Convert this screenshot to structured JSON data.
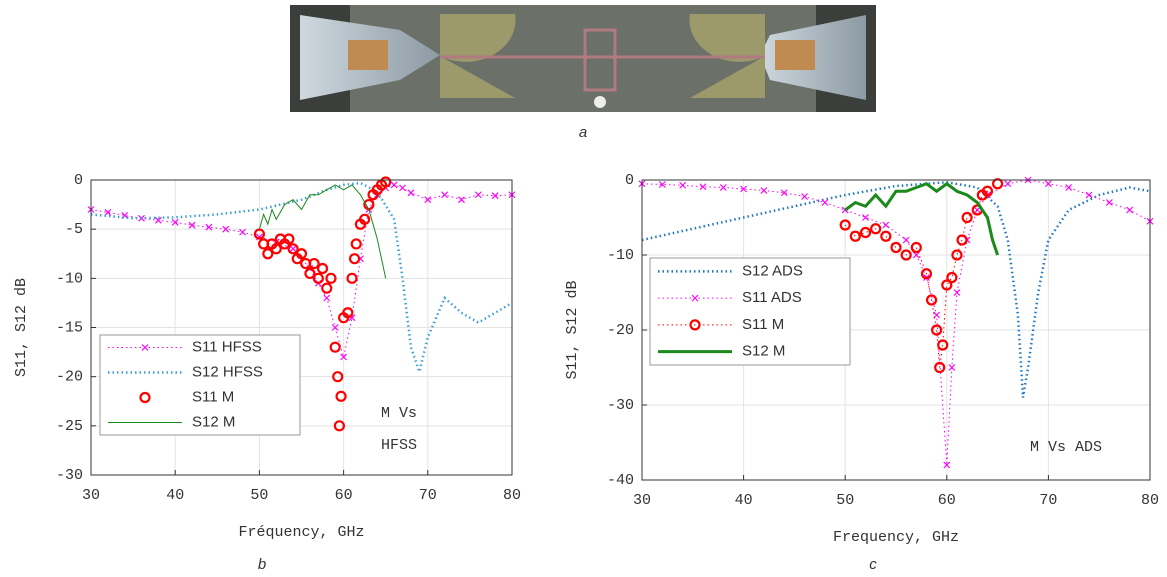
{
  "photo_caption": "a",
  "chart_data": [
    {
      "type": "line",
      "caption": "b",
      "xlabel": "Fréquency, GHz",
      "ylabel": "S11, S12 dB",
      "annotations": [
        "M Vs",
        "HFSS"
      ],
      "xlim": [
        30,
        80
      ],
      "ylim": [
        -30,
        0
      ],
      "xticks": [
        30,
        40,
        50,
        60,
        70,
        80
      ],
      "yticks": [
        -30,
        -25,
        -20,
        -15,
        -10,
        -5,
        0
      ],
      "grid": true,
      "series": [
        {
          "name": "S11 HFSS",
          "color": "#ff00ff",
          "line": "dotted",
          "marker": "x",
          "x": [
            30,
            32,
            34,
            36,
            38,
            40,
            42,
            44,
            46,
            48,
            50,
            52,
            54,
            56,
            57,
            58,
            59,
            60,
            61,
            62,
            63,
            64,
            65,
            66,
            67,
            68,
            70,
            72,
            74,
            76,
            78,
            80
          ],
          "values": [
            -3,
            -3.3,
            -3.6,
            -3.9,
            -4.1,
            -4.3,
            -4.6,
            -4.8,
            -5,
            -5.3,
            -5.8,
            -6.3,
            -7,
            -9,
            -10.5,
            -12,
            -15,
            -18,
            -14,
            -8,
            -3,
            -1.5,
            -0.8,
            -0.5,
            -0.8,
            -1.3,
            -2,
            -1.5,
            -2,
            -1.5,
            -1.6,
            -1.5
          ]
        },
        {
          "name": "S12 HFSS",
          "color": "#3d9fd6",
          "line": "dotted",
          "marker": null,
          "x": [
            30,
            35,
            40,
            45,
            50,
            55,
            58,
            60,
            62,
            64,
            66,
            67,
            68,
            69,
            70,
            72,
            74,
            76,
            78,
            80
          ],
          "values": [
            -3.5,
            -3.9,
            -3.8,
            -3.5,
            -3,
            -2,
            -1,
            -0.5,
            -0.3,
            -1.2,
            -4,
            -10,
            -17,
            -19.5,
            -16,
            -12,
            -13.5,
            -14.5,
            -13.5,
            -12.5
          ]
        },
        {
          "name": "S11 M",
          "color": "#ff0000",
          "line": null,
          "marker": "circle",
          "x": [
            50,
            50.5,
            51,
            51.5,
            52,
            52.5,
            53,
            53.5,
            54,
            54.5,
            55,
            55.5,
            56,
            56.5,
            57,
            57.5,
            58,
            58.5,
            59,
            59.3,
            59.5,
            59.7,
            60,
            60.5,
            61,
            61.3,
            61.5,
            62,
            62.5,
            63,
            63.5,
            64,
            64.5,
            65
          ],
          "values": [
            -5.5,
            -6.5,
            -7.5,
            -6.5,
            -7,
            -6,
            -6.5,
            -6,
            -7,
            -8,
            -7.5,
            -8.5,
            -9.5,
            -8.5,
            -10,
            -9,
            -11,
            -10,
            -17,
            -20,
            -25,
            -22,
            -14,
            -13.5,
            -10,
            -8,
            -6.5,
            -4.5,
            -4,
            -2.5,
            -1.5,
            -1,
            -0.5,
            -0.2
          ]
        },
        {
          "name": "S12 M",
          "color": "#1a8a1a",
          "line": "solid",
          "marker": null,
          "x": [
            50,
            50.5,
            51,
            51.5,
            52,
            53,
            54,
            55,
            56,
            57,
            58,
            59,
            60,
            61,
            62,
            63,
            64,
            65
          ],
          "values": [
            -5,
            -3.5,
            -4.5,
            -3,
            -4,
            -2.5,
            -2,
            -3,
            -1.5,
            -1.5,
            -1,
            -0.5,
            -1,
            -0.5,
            -1.5,
            -3,
            -6,
            -10
          ]
        }
      ]
    },
    {
      "type": "line",
      "caption": "c",
      "xlabel": "Frequency, GHz",
      "ylabel": "S11, S12 dB",
      "annotations": [
        "M Vs ADS"
      ],
      "xlim": [
        30,
        80
      ],
      "ylim": [
        -40,
        0
      ],
      "xticks": [
        30,
        40,
        50,
        60,
        70,
        80
      ],
      "yticks": [
        -40,
        -30,
        -20,
        -10,
        0
      ],
      "grid": true,
      "series": [
        {
          "name": "S12 ADS",
          "color": "#1f77c4",
          "line": "dotted",
          "marker": null,
          "x": [
            30,
            35,
            40,
            45,
            50,
            55,
            60,
            63,
            65,
            66,
            67,
            67.5,
            68,
            69,
            70,
            72,
            75,
            78,
            80
          ],
          "values": [
            -8,
            -6.5,
            -5,
            -3.5,
            -2,
            -0.8,
            -0.3,
            -1,
            -3.5,
            -8,
            -18,
            -29,
            -25,
            -15,
            -8,
            -4,
            -2,
            -1,
            -1.5
          ]
        },
        {
          "name": "S11 ADS",
          "color": "#ff00ff",
          "line": "dotted",
          "marker": "x",
          "x": [
            30,
            32,
            34,
            36,
            38,
            40,
            42,
            44,
            46,
            48,
            50,
            52,
            54,
            56,
            57,
            58,
            59,
            60,
            60.5,
            61,
            62,
            63,
            64,
            66,
            68,
            70,
            72,
            74,
            76,
            78,
            80
          ],
          "values": [
            -0.5,
            -0.6,
            -0.7,
            -0.9,
            -1,
            -1.2,
            -1.4,
            -1.7,
            -2.2,
            -3,
            -4,
            -5,
            -6,
            -8,
            -10,
            -13,
            -18,
            -38,
            -25,
            -15,
            -8,
            -4,
            -2,
            -0.5,
            0,
            -0.5,
            -1,
            -2,
            -3,
            -4,
            -5.5
          ]
        },
        {
          "name": "S11 M",
          "color": "#ff0000",
          "line": "dotted",
          "marker": "circle",
          "x": [
            50,
            51,
            52,
            53,
            54,
            55,
            56,
            57,
            58,
            58.5,
            59,
            59.3,
            59.6,
            60,
            60.5,
            61,
            61.5,
            62,
            63,
            63.5,
            64,
            65
          ],
          "values": [
            -6,
            -7.5,
            -7,
            -6.5,
            -7.5,
            -9,
            -10,
            -9,
            -12.5,
            -16,
            -20,
            -25,
            -22,
            -14,
            -13,
            -10,
            -8,
            -5,
            -4,
            -2,
            -1.5,
            -0.5
          ]
        },
        {
          "name": "S12 M",
          "color": "#1a8a1a",
          "line": "thick",
          "marker": null,
          "x": [
            50,
            51,
            52,
            53,
            54,
            55,
            56,
            57,
            58,
            59,
            60,
            61,
            62,
            63,
            64,
            64.5,
            65
          ],
          "values": [
            -4,
            -3,
            -3.5,
            -2,
            -3.5,
            -1.5,
            -1.5,
            -1,
            -0.5,
            -1.5,
            -0.5,
            -1.5,
            -2,
            -3,
            -5,
            -8,
            -10
          ]
        }
      ]
    }
  ]
}
